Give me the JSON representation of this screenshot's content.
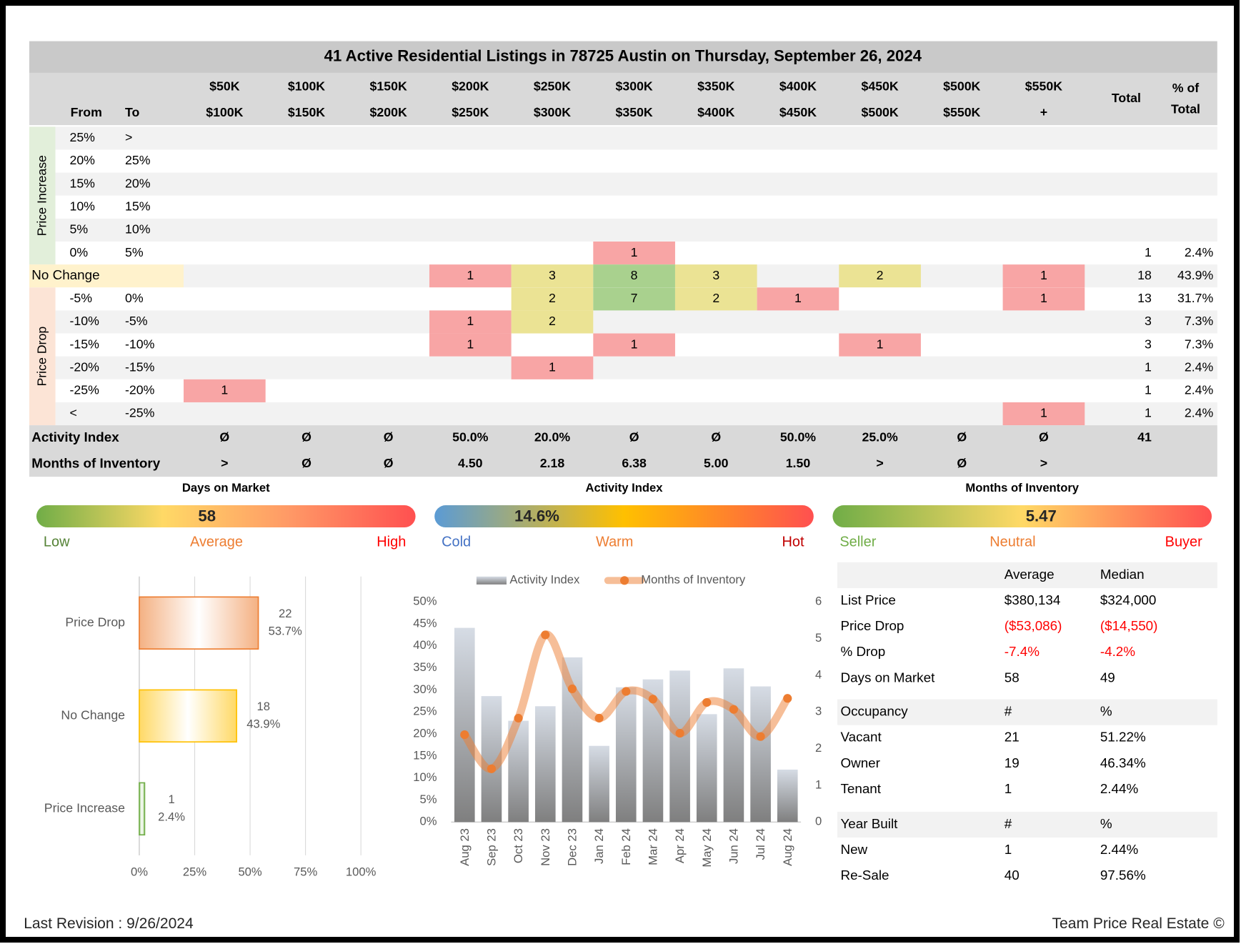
{
  "title": "41 Active Residential Listings in 78725 Austin on Thursday, September 26, 2024",
  "grid": {
    "from_label": "From",
    "to_label": "To",
    "total_label": "Total",
    "share_label": [
      "% of",
      "Total"
    ],
    "header_top": [
      "$50K",
      "$100K",
      "$150K",
      "$200K",
      "$250K",
      "$300K",
      "$350K",
      "$400K",
      "$450K",
      "$500K",
      "$550K"
    ],
    "header_bottom": [
      "$100K",
      "$150K",
      "$200K",
      "$250K",
      "$300K",
      "$350K",
      "$400K",
      "$450K",
      "$500K",
      "$550K",
      "+"
    ],
    "heat_colors": [
      "#f8a5a5",
      "#ebe394",
      "#a9d18e"
    ],
    "sections": [
      {
        "label": "Price Increase",
        "color": "#e2efda",
        "rows": [
          {
            "from": "25%",
            "to": ">"
          },
          {
            "from": "20%",
            "to": "25%"
          },
          {
            "from": "15%",
            "to": "20%"
          },
          {
            "from": "10%",
            "to": "15%"
          },
          {
            "from": "5%",
            "to": "10%"
          },
          {
            "from": "0%",
            "to": "5%",
            "counts": [
              null,
              null,
              null,
              null,
              null,
              1,
              null,
              null,
              null,
              null,
              null
            ],
            "total": 1,
            "share": "2.4%"
          }
        ]
      },
      {
        "label": "No Change",
        "color": "#fff2cc",
        "rows": [
          {
            "counts": [
              null,
              null,
              null,
              1,
              3,
              8,
              3,
              null,
              2,
              null,
              1
            ],
            "total": 18,
            "share": "43.9%"
          }
        ]
      },
      {
        "label": "Price Drop",
        "color": "#fce4d6",
        "rows": [
          {
            "from": "-5%",
            "to": "0%",
            "counts": [
              null,
              null,
              null,
              null,
              2,
              7,
              2,
              1,
              null,
              null,
              1
            ],
            "total": 13,
            "share": "31.7%"
          },
          {
            "from": "-10%",
            "to": "-5%",
            "counts": [
              null,
              null,
              null,
              1,
              2,
              null,
              null,
              null,
              null,
              null,
              null
            ],
            "total": 3,
            "share": "7.3%"
          },
          {
            "from": "-15%",
            "to": "-10%",
            "counts": [
              null,
              null,
              null,
              1,
              null,
              1,
              null,
              null,
              1,
              null,
              null
            ],
            "total": 3,
            "share": "7.3%"
          },
          {
            "from": "-20%",
            "to": "-15%",
            "counts": [
              null,
              null,
              null,
              null,
              1,
              null,
              null,
              null,
              null,
              null,
              null
            ],
            "total": 1,
            "share": "2.4%"
          },
          {
            "from": "-25%",
            "to": "-20%",
            "counts": [
              1,
              null,
              null,
              null,
              null,
              null,
              null,
              null,
              null,
              null,
              null
            ],
            "total": 1,
            "share": "2.4%"
          },
          {
            "from": "<",
            "to": "-25%",
            "counts": [
              null,
              null,
              null,
              null,
              null,
              null,
              null,
              null,
              null,
              null,
              1
            ],
            "total": 1,
            "share": "2.4%"
          }
        ]
      }
    ],
    "summary_rows": [
      {
        "label": "Activity Index",
        "values": [
          "Ø",
          "Ø",
          "Ø",
          "50.0%",
          "20.0%",
          "Ø",
          "Ø",
          "50.0%",
          "25.0%",
          "Ø",
          "Ø"
        ],
        "total": 41
      },
      {
        "label": "Months of Inventory",
        "values": [
          ">",
          "Ø",
          "Ø",
          "4.50",
          "2.18",
          "6.38",
          "5.00",
          "1.50",
          ">",
          "Ø",
          ">"
        ]
      }
    ]
  },
  "gauges": [
    {
      "title": "Days on Market",
      "value": "58",
      "labels": [
        "Low",
        "Average",
        "High"
      ],
      "label_colors": [
        "#548235",
        "#ed7d31",
        "#ff0000"
      ],
      "colors": [
        "#70ad47",
        "#ffd966",
        "#ff9966",
        "#ff5050"
      ]
    },
    {
      "title": "Activity Index",
      "value": "14.6%",
      "labels": [
        "Cold",
        "Warm",
        "Hot"
      ],
      "label_colors": [
        "#4472c4",
        "#ed7d31",
        "#c00000"
      ],
      "colors": [
        "#5b9bd5",
        "#ffc000",
        "#ff5050"
      ]
    },
    {
      "title": "Months of Inventory",
      "value": "5.47",
      "labels": [
        "Seller",
        "Neutral",
        "Buyer"
      ],
      "label_colors": [
        "#70ad47",
        "#ed7d31",
        "#ff0000"
      ],
      "colors": [
        "#70ad47",
        "#ffd966",
        "#ff5050"
      ]
    }
  ],
  "chart_data": [
    {
      "type": "hbar",
      "categories": [
        "Price Drop",
        "No Change",
        "Price Increase"
      ],
      "values": [
        53.7,
        43.9,
        2.4
      ],
      "value_labels": [
        "53.7%",
        "43.9%",
        "2.4%"
      ],
      "counts": [
        22,
        18,
        1
      ],
      "colors": [
        "#f4b183",
        "#ffd966",
        "#a9d18e"
      ],
      "edge_colors": [
        "#ed7d31",
        "#ffc000",
        "#70ad47"
      ],
      "xlim": [
        0,
        100
      ],
      "grid": true,
      "xticks": [
        {
          "value": 0,
          "label": "0%"
        },
        {
          "value": 25,
          "label": "25%"
        },
        {
          "value": 50,
          "label": "50%"
        },
        {
          "value": 75,
          "label": "75%"
        },
        {
          "value": 100,
          "label": "100%"
        }
      ]
    },
    {
      "type": "combo",
      "categories": [
        "Aug 23",
        "Sep 23",
        "Oct 23",
        "Nov 23",
        "Dec 23",
        "Jan 24",
        "Feb 24",
        "Mar 24",
        "Apr 24",
        "May 24",
        "Jun 24",
        "Jul 24",
        "Aug 24"
      ],
      "series": [
        {
          "name": "Activity Index",
          "type": "bar",
          "color": "#7f7f7f",
          "values": [
            44.1,
            28.6,
            23.0,
            26.3,
            37.4,
            17.3,
            30.6,
            32.4,
            34.4,
            24.5,
            34.9,
            30.8,
            11.9
          ]
        },
        {
          "name": "Months of Inventory",
          "type": "line",
          "color": "#ed7d31",
          "axis": "y2",
          "values": [
            2.38,
            1.45,
            2.83,
            5.1,
            3.63,
            2.83,
            3.56,
            3.35,
            2.42,
            3.26,
            3.07,
            2.33,
            3.37
          ]
        }
      ],
      "ylim": [
        0,
        50
      ],
      "yticks": [
        {
          "value": 0,
          "label": "0%"
        },
        {
          "value": 5,
          "label": "5%"
        },
        {
          "value": 10,
          "label": "10%"
        },
        {
          "value": 15,
          "label": "15%"
        },
        {
          "value": 20,
          "label": "20%"
        },
        {
          "value": 25,
          "label": "25%"
        },
        {
          "value": 30,
          "label": "30%"
        },
        {
          "value": 35,
          "label": "35%"
        },
        {
          "value": 40,
          "label": "40%"
        },
        {
          "value": 45,
          "label": "45%"
        },
        {
          "value": 50,
          "label": "50%"
        }
      ],
      "y2lim": [
        0,
        6
      ],
      "y2ticks": [
        0,
        1,
        2,
        3,
        4,
        5,
        6
      ]
    }
  ],
  "stats": [
    {
      "columns": [
        "Average",
        "Median"
      ],
      "rows": [
        {
          "label": "List Price",
          "values": [
            "$380,134",
            "$324,000"
          ]
        },
        {
          "label": "Price Drop",
          "values": [
            "($53,086)",
            "($14,550)"
          ],
          "color": "#ff0000"
        },
        {
          "label": "% Drop",
          "values": [
            "-7.4%",
            "-4.2%"
          ],
          "color": "#ff0000"
        },
        {
          "label": "Days on Market",
          "values": [
            58,
            49
          ]
        }
      ]
    },
    {
      "title": "Occupancy",
      "columns": [
        "#",
        "%"
      ],
      "rows": [
        {
          "label": "Vacant",
          "values": [
            21,
            "51.22%"
          ]
        },
        {
          "label": "Owner",
          "values": [
            19,
            "46.34%"
          ]
        },
        {
          "label": "Tenant",
          "values": [
            1,
            "2.44%"
          ]
        }
      ]
    },
    {
      "title": "Year Built",
      "columns": [
        "#",
        "%"
      ],
      "rows": [
        {
          "label": "New",
          "values": [
            1,
            "2.44%"
          ]
        },
        {
          "label": "Re-Sale",
          "values": [
            40,
            "97.56%"
          ]
        }
      ]
    }
  ],
  "footer": {
    "left": "Last Revision : 9/26/2024",
    "right": "Team Price Real Estate ©"
  }
}
